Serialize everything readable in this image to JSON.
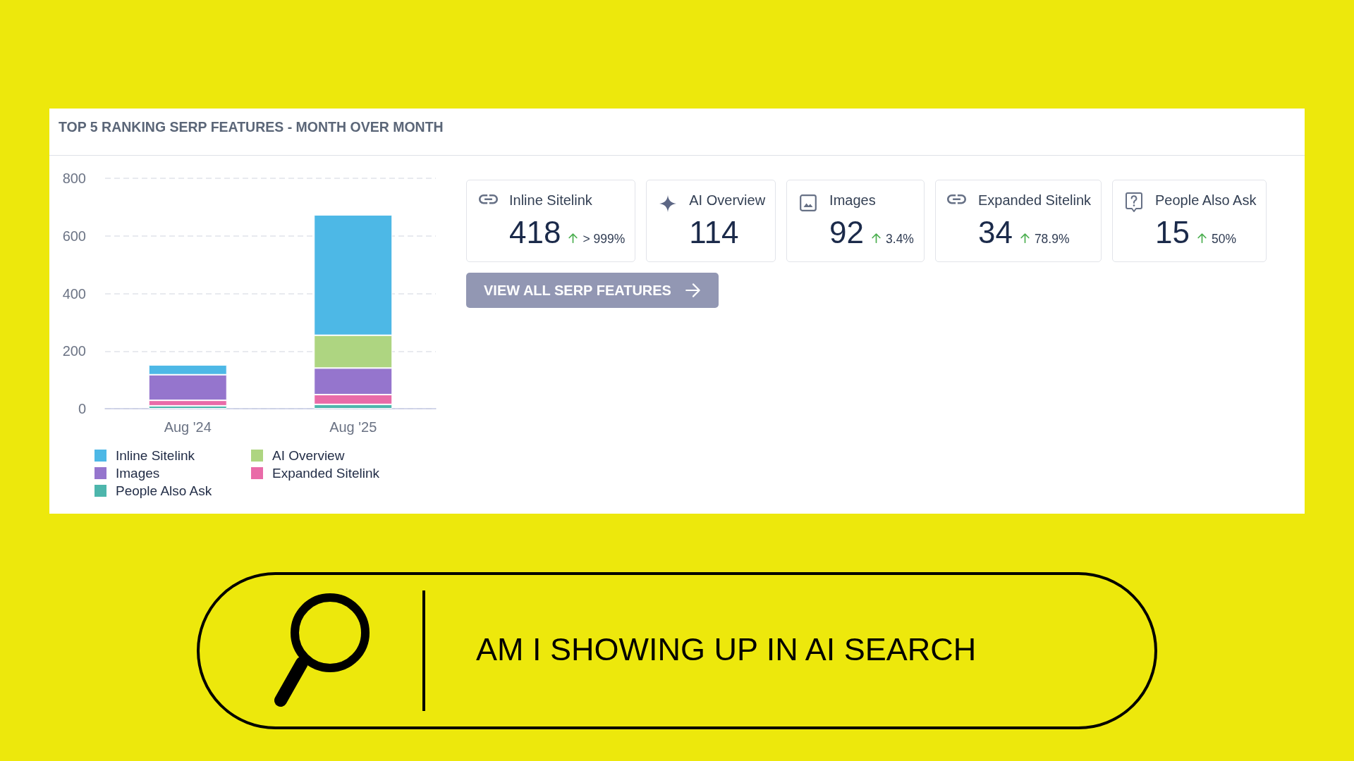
{
  "chart_data": [
    {
      "type": "bar",
      "title": "TOP 5 RANKING SERP FEATURES - MONTH OVER MONTH",
      "categories": [
        "Aug '24",
        "Aug '25"
      ],
      "stacked": true,
      "series": [
        {
          "name": "People Also Ask",
          "color": "#4db6ac",
          "values": [
            10,
            15
          ]
        },
        {
          "name": "Expanded Sitelink",
          "color": "#e96ba8",
          "values": [
            19,
            34
          ]
        },
        {
          "name": "Images",
          "color": "#9575cd",
          "values": [
            89,
            92
          ]
        },
        {
          "name": "AI Overview",
          "color": "#aed581",
          "values": [
            null,
            114
          ]
        },
        {
          "name": "Inline Sitelink",
          "color": "#4db8e6",
          "values": [
            34,
            418
          ]
        }
      ],
      "ylim": [
        0,
        800
      ],
      "yticks": [
        0,
        200,
        400,
        600,
        800
      ],
      "grid": "y",
      "legend": "bottom left"
    },
    {
      "type": "other",
      "categories": [
        "Inline Sitelink",
        "AI Overview",
        "Images",
        "Expanded Sitelink",
        "People Also Ask"
      ],
      "values": [
        418,
        114,
        92,
        34,
        15
      ],
      "data_labels": true,
      "annotations": [
        {
          "text": "> 999%",
          "x": "Inline Sitelink"
        },
        {
          "text": "3.4%",
          "x": "Images"
        },
        {
          "text": "78.9%",
          "x": "Expanded Sitelink"
        },
        {
          "text": "50%",
          "x": "People Also Ask"
        },
        "VIEW ALL SERP FEATURES"
      ]
    },
    {
      "type": "other",
      "title": "AM I SHOWING UP IN AI SEARCH"
    }
  ]
}
